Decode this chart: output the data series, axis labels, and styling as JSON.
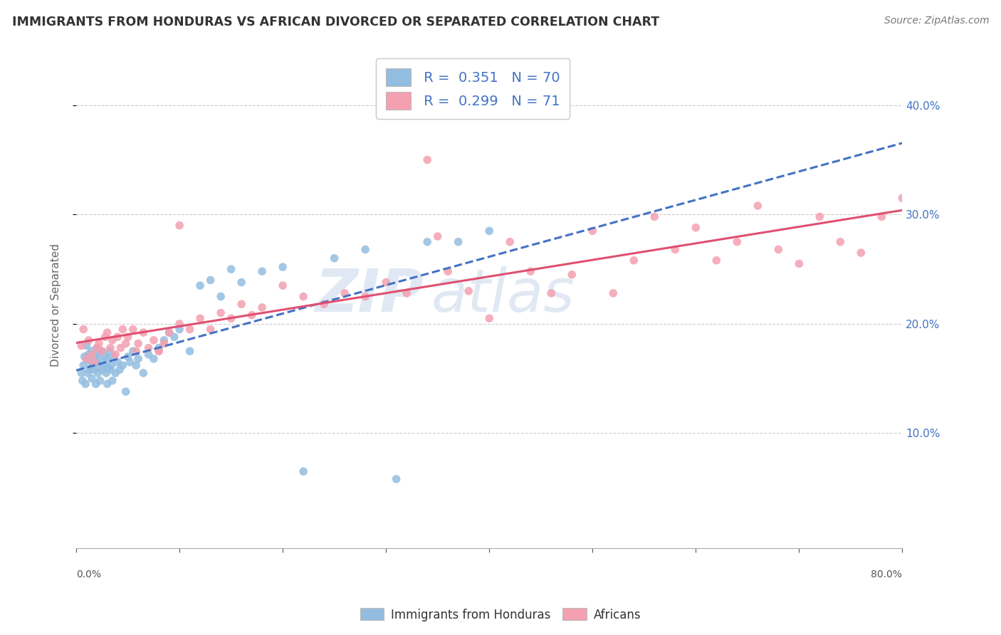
{
  "title": "IMMIGRANTS FROM HONDURAS VS AFRICAN DIVORCED OR SEPARATED CORRELATION CHART",
  "source_text": "Source: ZipAtlas.com",
  "ylabel": "Divorced or Separated",
  "right_yticks": [
    0.1,
    0.2,
    0.3,
    0.4
  ],
  "xlim": [
    0.0,
    0.8
  ],
  "ylim": [
    -0.005,
    0.44
  ],
  "legend_label1": "Immigrants from Honduras",
  "legend_label2": "Africans",
  "color_blue": "#93bde0",
  "color_pink": "#f4a0b0",
  "color_blue_text": "#4472C4",
  "color_pink_line": "#E05070",
  "color_blue_line": "#4472C4",
  "watermark1": "ZIP",
  "watermark2": "atlas",
  "background_color": "#ffffff",
  "blue_x": [
    0.005,
    0.006,
    0.007,
    0.008,
    0.009,
    0.01,
    0.01,
    0.011,
    0.012,
    0.013,
    0.014,
    0.015,
    0.015,
    0.016,
    0.017,
    0.018,
    0.019,
    0.02,
    0.02,
    0.021,
    0.022,
    0.022,
    0.023,
    0.024,
    0.025,
    0.026,
    0.027,
    0.028,
    0.029,
    0.03,
    0.03,
    0.031,
    0.032,
    0.033,
    0.034,
    0.035,
    0.036,
    0.038,
    0.04,
    0.042,
    0.045,
    0.048,
    0.05,
    0.052,
    0.055,
    0.058,
    0.06,
    0.065,
    0.07,
    0.075,
    0.08,
    0.085,
    0.09,
    0.095,
    0.1,
    0.11,
    0.12,
    0.13,
    0.14,
    0.15,
    0.16,
    0.18,
    0.2,
    0.22,
    0.25,
    0.28,
    0.31,
    0.34,
    0.37,
    0.4
  ],
  "blue_y": [
    0.155,
    0.148,
    0.162,
    0.17,
    0.145,
    0.168,
    0.18,
    0.155,
    0.172,
    0.158,
    0.165,
    0.15,
    0.175,
    0.162,
    0.158,
    0.17,
    0.145,
    0.165,
    0.178,
    0.155,
    0.172,
    0.16,
    0.148,
    0.165,
    0.175,
    0.158,
    0.162,
    0.17,
    0.155,
    0.168,
    0.145,
    0.16,
    0.175,
    0.158,
    0.162,
    0.148,
    0.17,
    0.155,
    0.165,
    0.158,
    0.162,
    0.138,
    0.17,
    0.165,
    0.175,
    0.162,
    0.168,
    0.155,
    0.172,
    0.168,
    0.178,
    0.185,
    0.192,
    0.188,
    0.195,
    0.175,
    0.235,
    0.24,
    0.225,
    0.25,
    0.238,
    0.248,
    0.252,
    0.065,
    0.26,
    0.268,
    0.058,
    0.275,
    0.275,
    0.285
  ],
  "pink_x": [
    0.005,
    0.007,
    0.01,
    0.012,
    0.015,
    0.017,
    0.02,
    0.022,
    0.025,
    0.028,
    0.03,
    0.033,
    0.035,
    0.038,
    0.04,
    0.043,
    0.045,
    0.048,
    0.05,
    0.055,
    0.058,
    0.06,
    0.065,
    0.07,
    0.075,
    0.08,
    0.085,
    0.09,
    0.1,
    0.11,
    0.12,
    0.13,
    0.14,
    0.15,
    0.16,
    0.17,
    0.18,
    0.2,
    0.22,
    0.24,
    0.26,
    0.28,
    0.3,
    0.32,
    0.34,
    0.36,
    0.38,
    0.4,
    0.42,
    0.44,
    0.46,
    0.48,
    0.5,
    0.52,
    0.54,
    0.56,
    0.58,
    0.6,
    0.62,
    0.64,
    0.66,
    0.68,
    0.7,
    0.72,
    0.74,
    0.76,
    0.78,
    0.8,
    0.08,
    0.1,
    0.35
  ],
  "pink_y": [
    0.18,
    0.195,
    0.168,
    0.185,
    0.172,
    0.165,
    0.178,
    0.182,
    0.175,
    0.188,
    0.192,
    0.178,
    0.185,
    0.172,
    0.188,
    0.178,
    0.195,
    0.182,
    0.188,
    0.195,
    0.175,
    0.182,
    0.192,
    0.178,
    0.185,
    0.175,
    0.182,
    0.192,
    0.2,
    0.195,
    0.205,
    0.195,
    0.21,
    0.205,
    0.218,
    0.208,
    0.215,
    0.235,
    0.225,
    0.218,
    0.228,
    0.225,
    0.238,
    0.228,
    0.35,
    0.248,
    0.23,
    0.205,
    0.275,
    0.248,
    0.228,
    0.245,
    0.285,
    0.228,
    0.258,
    0.298,
    0.268,
    0.288,
    0.258,
    0.275,
    0.308,
    0.268,
    0.255,
    0.298,
    0.275,
    0.265,
    0.298,
    0.315,
    0.175,
    0.29,
    0.28
  ]
}
